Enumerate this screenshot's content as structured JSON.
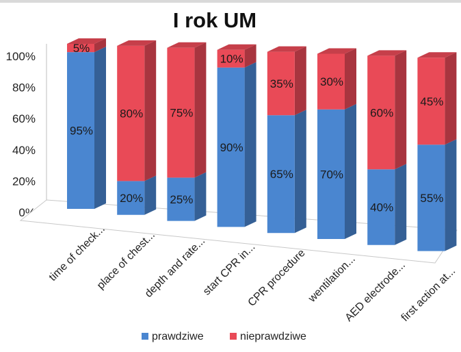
{
  "chart_data": {
    "type": "bar",
    "stacked": true,
    "title": "I rok UM",
    "categories": [
      "time of check...",
      "place of chest...",
      "depth and rate...",
      "start CPR in...",
      "CPR procedure",
      "wentilation...",
      "AED electrode...",
      "first action at..."
    ],
    "series": [
      {
        "name": "prawdziwe",
        "color": "#4a86d0",
        "values": [
          95,
          20,
          25,
          90,
          65,
          70,
          40,
          55
        ]
      },
      {
        "name": "nieprawdziwe",
        "color": "#e94a57",
        "values": [
          5,
          80,
          75,
          10,
          35,
          30,
          60,
          45
        ]
      }
    ],
    "data_labels": [
      [
        "95%",
        "20%",
        "25%",
        "90%",
        "65%",
        "70%",
        "40%",
        "55%"
      ],
      [
        "5%",
        "80%",
        "75%",
        "10%",
        "35%",
        "30%",
        "60%",
        "45%"
      ]
    ],
    "y_ticks": [
      "0%",
      "20%",
      "40%",
      "60%",
      "80%",
      "100%"
    ],
    "ylim": [
      0,
      100
    ],
    "legend_position": "bottom",
    "style": "3d-column"
  }
}
